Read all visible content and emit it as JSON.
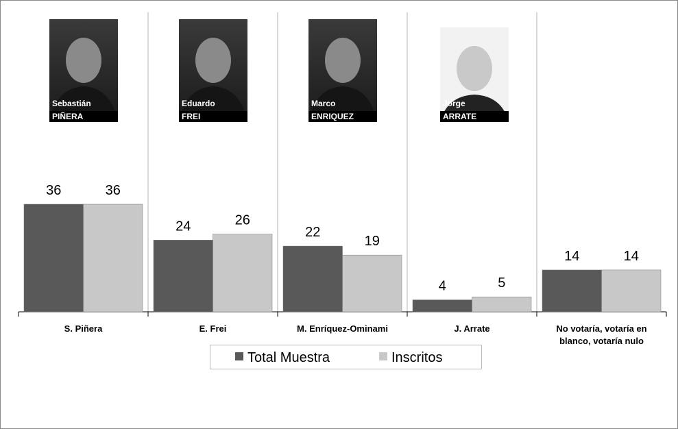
{
  "chart_data": {
    "type": "bar",
    "categories": [
      "S. Piñera",
      "E. Frei",
      "M. Enríquez-Ominami",
      "J. Arrate",
      "No votaría, votaría en blanco, votaría nulo"
    ],
    "series": [
      {
        "name": "Total Muestra",
        "color": "#595959",
        "values": [
          36,
          24,
          22,
          4,
          14
        ]
      },
      {
        "name": "Inscritos",
        "color": "#c8c8c8",
        "values": [
          36,
          26,
          19,
          5,
          14
        ]
      }
    ],
    "photos": [
      {
        "first": "Sebastián",
        "last": "PIÑERA"
      },
      {
        "first": "Eduardo",
        "last": "FREI"
      },
      {
        "first": "Marco",
        "last": "ENRIQUEZ"
      },
      {
        "first": "Jorge",
        "last": "ARRATE"
      }
    ],
    "legend": "bottom"
  }
}
